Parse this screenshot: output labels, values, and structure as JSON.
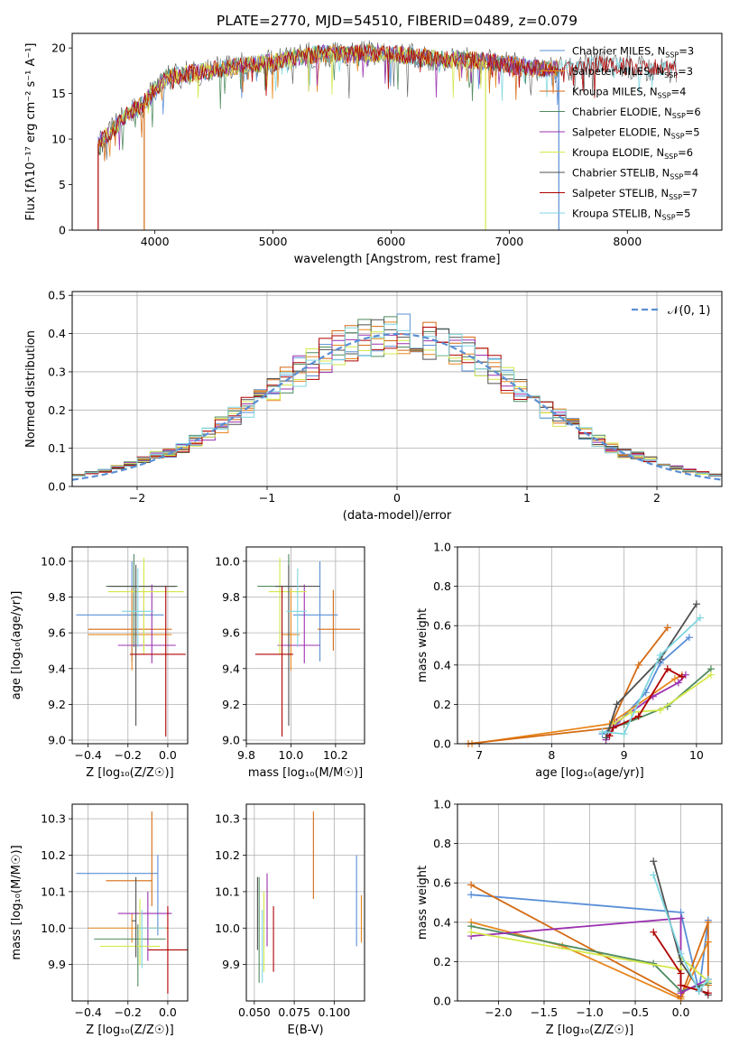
{
  "title": "PLATE=2770, MJD=54510, FIBERID=0489, z=0.079",
  "series_colors": [
    "#5a8fd6",
    "#e8871e",
    "#d46a12",
    "#4f8a5e",
    "#9b30b0",
    "#d4e84a",
    "#505050",
    "#b00000",
    "#7fd6e0"
  ],
  "chart_data": [
    {
      "id": "spectrum",
      "type": "line",
      "title": "PLATE=2770, MJD=54510, FIBERID=0489, z=0.079",
      "xlabel": "wavelength [Angstrom, rest frame]",
      "ylabel": "Flux [fλ10⁻¹⁷ erg cm⁻² s⁻¹ A⁻¹]",
      "xlim": [
        3300,
        8800
      ],
      "ylim": [
        0,
        21.6
      ],
      "xticks": [
        "4000",
        "5000",
        "6000",
        "7000",
        "8000"
      ],
      "yticks": [
        "0",
        "5",
        "10",
        "15",
        "20"
      ],
      "legend_position": "right",
      "legend": [
        {
          "label": "Chabrier MILES, N",
          "sub": "SSP",
          "tail": "=3"
        },
        {
          "label": "Salpeter MILES, N",
          "sub": "SSP",
          "tail": "=3"
        },
        {
          "label": "Kroupa MILES, N",
          "sub": "SSP",
          "tail": "=4"
        },
        {
          "label": "Chabrier ELODIE, N",
          "sub": "SSP",
          "tail": "=6"
        },
        {
          "label": "Salpeter ELODIE, N",
          "sub": "SSP",
          "tail": "=5"
        },
        {
          "label": "Kroupa ELODIE, N",
          "sub": "SSP",
          "tail": "=6"
        },
        {
          "label": "Chabrier STELIB, N",
          "sub": "SSP",
          "tail": "=4"
        },
        {
          "label": "Salpeter STELIB, N",
          "sub": "SSP",
          "tail": "=7"
        },
        {
          "label": "Kroupa STELIB, N",
          "sub": "SSP",
          "tail": "=5"
        }
      ],
      "envelope": {
        "x": [
          3520,
          3600,
          3700,
          3800,
          3900,
          4000,
          4100,
          4200,
          4400,
          4600,
          4800,
          5000,
          5200,
          5400,
          5600,
          5800,
          6000,
          6200,
          6400,
          6600,
          6800,
          7000,
          7200,
          7400,
          7600,
          7800,
          8000,
          8200,
          8400
        ],
        "y": [
          9.5,
          10.5,
          11.8,
          13.2,
          13.8,
          15.5,
          16.8,
          17.0,
          17.4,
          17.8,
          18.2,
          18.4,
          19.0,
          19.4,
          19.2,
          19.5,
          19.3,
          19.1,
          18.8,
          18.8,
          18.5,
          18.2,
          17.8,
          17.7,
          18.0,
          18.3,
          18.0,
          17.8,
          17.6
        ]
      }
    },
    {
      "id": "residuals",
      "type": "bar",
      "xlabel": "(data-model)/error",
      "ylabel": "Normed distribution",
      "xlim": [
        -2.5,
        2.5
      ],
      "ylim": [
        0,
        0.51
      ],
      "xticks": [
        "−2",
        "−1",
        "0",
        "1",
        "2"
      ],
      "yticks": [
        "0.0",
        "0.1",
        "0.2",
        "0.3",
        "0.4",
        "0.5"
      ],
      "bin_width": 0.1,
      "legend_label": "𝒩(0, 1)",
      "legend_position": "top-right"
    },
    {
      "id": "age_vs_Z",
      "type": "scatter",
      "xlabel": "Z [log₁₀(Z/Z☉)]",
      "ylabel": "age  [log₁₀(age/yr)]",
      "xlim": [
        -0.48,
        0.1
      ],
      "ylim": [
        8.98,
        10.08
      ],
      "xticks": [
        "−0.4",
        "−0.2",
        "0.0"
      ],
      "yticks": [
        "9.0",
        "9.2",
        "9.4",
        "9.6",
        "9.8",
        "10.0"
      ],
      "points": [
        {
          "x": -0.18,
          "y": 9.7,
          "xl": 0.28,
          "xr": 0.16,
          "yl": 0.26,
          "yh": 0.3,
          "c": 0
        },
        {
          "x": -0.18,
          "y": 9.59,
          "xl": 0.22,
          "xr": 0.2,
          "yl": 0.2,
          "yh": 0.26,
          "c": 1
        },
        {
          "x": -0.12,
          "y": 9.62,
          "xl": 0.28,
          "xr": 0.14,
          "yl": 0.12,
          "yh": 0.22,
          "c": 2
        },
        {
          "x": -0.17,
          "y": 9.86,
          "xl": 0.14,
          "xr": 0.22,
          "yl": 0.34,
          "yh": 0.18,
          "c": 3
        },
        {
          "x": -0.08,
          "y": 9.53,
          "xl": 0.17,
          "xr": 0.12,
          "yl": 0.1,
          "yh": 0.34,
          "c": 4
        },
        {
          "x": -0.12,
          "y": 9.83,
          "xl": 0.18,
          "xr": 0.2,
          "yl": 0.35,
          "yh": 0.19,
          "c": 5
        },
        {
          "x": -0.16,
          "y": 9.86,
          "xl": 0.14,
          "xr": 0.2,
          "yl": 0.78,
          "yh": 0.12,
          "c": 6
        },
        {
          "x": -0.01,
          "y": 9.48,
          "xl": 0.18,
          "xr": 0.1,
          "yl": 0.46,
          "yh": 0.38,
          "c": 7
        },
        {
          "x": -0.15,
          "y": 9.72,
          "xl": 0.08,
          "xr": 0.08,
          "yl": 0.2,
          "yh": 0.24,
          "c": 8
        }
      ]
    },
    {
      "id": "age_vs_mass",
      "type": "scatter",
      "xlabel": "mass [log₁₀(M/M☉)]",
      "ylabel": "",
      "xlim": [
        9.8,
        10.33
      ],
      "ylim": [
        8.98,
        10.08
      ],
      "xticks": [
        "9.8",
        "10.0",
        "10.2"
      ],
      "yticks": [
        "9.0",
        "9.2",
        "9.4",
        "9.6",
        "9.8",
        "10.0"
      ],
      "points": [
        {
          "x": 10.13,
          "y": 9.7,
          "xl": 0.12,
          "xr": 0.08,
          "yl": 0.26,
          "yh": 0.3,
          "c": 0
        },
        {
          "x": 10.0,
          "y": 9.59,
          "xl": 0.04,
          "xr": 0.04,
          "yl": 0.2,
          "yh": 0.26,
          "c": 1
        },
        {
          "x": 10.19,
          "y": 9.62,
          "xl": 0.07,
          "xr": 0.12,
          "yl": 0.12,
          "yh": 0.22,
          "c": 2
        },
        {
          "x": 9.99,
          "y": 9.86,
          "xl": 0.14,
          "xr": 0.04,
          "yl": 0.34,
          "yh": 0.18,
          "c": 3
        },
        {
          "x": 10.06,
          "y": 9.53,
          "xl": 0.12,
          "xr": 0.07,
          "yl": 0.1,
          "yh": 0.34,
          "c": 4
        },
        {
          "x": 9.95,
          "y": 9.83,
          "xl": 0.05,
          "xr": 0.12,
          "yl": 0.35,
          "yh": 0.19,
          "c": 5
        },
        {
          "x": 9.99,
          "y": 9.86,
          "xl": 0.06,
          "xr": 0.14,
          "yl": 0.78,
          "yh": 0.12,
          "c": 6
        },
        {
          "x": 9.96,
          "y": 9.48,
          "xl": 0.12,
          "xr": 0.05,
          "yl": 0.46,
          "yh": 0.38,
          "c": 7
        },
        {
          "x": 10.03,
          "y": 9.72,
          "xl": 0.05,
          "xr": 0.04,
          "yl": 0.2,
          "yh": 0.24,
          "c": 8
        }
      ]
    },
    {
      "id": "mass_weight_vs_age",
      "type": "line",
      "xlabel": "age  [log₁₀(age/yr)]",
      "ylabel": "mass weight",
      "xlim": [
        6.7,
        10.35
      ],
      "ylim": [
        0,
        1.0
      ],
      "xticks": [
        "7",
        "8",
        "9",
        "10"
      ],
      "yticks": [
        "0.0",
        "0.2",
        "0.4",
        "0.6",
        "0.8",
        "1.0"
      ],
      "series": [
        {
          "c": 0,
          "x": [
            8.7,
            8.9,
            9.3,
            9.5,
            9.9
          ],
          "y": [
            0.05,
            0.1,
            0.26,
            0.41,
            0.54
          ]
        },
        {
          "c": 1,
          "x": [
            6.9,
            8.8,
            9.7,
            9.8
          ],
          "y": [
            0.0,
            0.1,
            0.33,
            0.35
          ]
        },
        {
          "c": 2,
          "x": [
            6.85,
            8.8,
            9.2,
            9.6
          ],
          "y": [
            0.0,
            0.08,
            0.4,
            0.59
          ]
        },
        {
          "c": 3,
          "x": [
            8.8,
            9.0,
            9.6,
            10.2
          ],
          "y": [
            0.08,
            0.1,
            0.19,
            0.38
          ]
        },
        {
          "c": 4,
          "x": [
            8.75,
            8.9,
            9.4,
            9.75,
            9.85
          ],
          "y": [
            0.02,
            0.11,
            0.24,
            0.31,
            0.35
          ]
        },
        {
          "c": 5,
          "x": [
            8.85,
            9.1,
            9.5,
            10.2
          ],
          "y": [
            0.1,
            0.16,
            0.17,
            0.35
          ]
        },
        {
          "c": 6,
          "x": [
            8.75,
            8.9,
            9.5,
            10.0
          ],
          "y": [
            0.03,
            0.2,
            0.43,
            0.71
          ]
        },
        {
          "c": 7,
          "x": [
            8.8,
            8.85,
            9.2,
            9.6,
            9.8
          ],
          "y": [
            0.04,
            0.08,
            0.14,
            0.38,
            0.34
          ]
        },
        {
          "c": 8,
          "x": [
            8.7,
            9.0,
            9.5,
            10.05
          ],
          "y": [
            0.06,
            0.05,
            0.45,
            0.64
          ]
        }
      ]
    },
    {
      "id": "mass_vs_Z",
      "type": "scatter",
      "xlabel": "Z [log₁₀(Z/Z☉)]",
      "ylabel": "mass [log₁₀(M/M☉)]",
      "xlim": [
        -0.48,
        0.1
      ],
      "ylim": [
        9.8,
        10.34
      ],
      "xticks": [
        "−0.4",
        "−0.2",
        "0.0"
      ],
      "yticks": [
        "9.9",
        "10.0",
        "10.1",
        "10.2",
        "10.3"
      ],
      "points": [
        {
          "x": -0.05,
          "y": 10.15,
          "xl": 0.41,
          "xr": 0.0,
          "yl": 0.17,
          "yh": 0.05,
          "c": 0
        },
        {
          "x": -0.18,
          "y": 10.0,
          "xl": 0.22,
          "xr": 0.18,
          "yl": 0.04,
          "yh": 0.04,
          "c": 1
        },
        {
          "x": -0.08,
          "y": 10.13,
          "xl": 0.23,
          "xr": 0.0,
          "yl": 0.07,
          "yh": 0.19,
          "c": 2
        },
        {
          "x": -0.15,
          "y": 9.97,
          "xl": 0.22,
          "xr": 0.14,
          "yl": 0.13,
          "yh": 0.04,
          "c": 3
        },
        {
          "x": -0.1,
          "y": 10.04,
          "xl": 0.15,
          "xr": 0.12,
          "yl": 0.13,
          "yh": 0.06,
          "c": 4
        },
        {
          "x": -0.14,
          "y": 9.95,
          "xl": 0.2,
          "xr": 0.1,
          "yl": 0.05,
          "yh": 0.13,
          "c": 5
        },
        {
          "x": -0.16,
          "y": 10.02,
          "xl": 0.02,
          "xr": 0.0,
          "yl": 0.1,
          "yh": 0.12,
          "c": 6
        },
        {
          "x": 0.0,
          "y": 9.94,
          "xl": 0.1,
          "xr": 0.1,
          "yl": 0.12,
          "yh": 0.12,
          "c": 7
        },
        {
          "x": -0.13,
          "y": 10.0,
          "xl": 0.02,
          "xr": 0.12,
          "yl": 0.11,
          "yh": 0.05,
          "c": 8
        }
      ]
    },
    {
      "id": "mass_vs_ebv",
      "type": "scatter",
      "xlabel": "E(B-V)",
      "ylabel": "",
      "xlim": [
        0.045,
        0.119
      ],
      "ylim": [
        9.8,
        10.34
      ],
      "xticks": [
        "0.050",
        "0.075",
        "0.100"
      ],
      "yticks": [
        "9.9",
        "10.0",
        "10.1",
        "10.2",
        "10.3"
      ],
      "points": [
        {
          "x": 0.114,
          "y": 10.07,
          "yl": 0.12,
          "yh": 0.13,
          "c": 0
        },
        {
          "x": 0.117,
          "y": 10.02,
          "yl": 0.06,
          "yh": 0.07,
          "c": 1
        },
        {
          "x": 0.087,
          "y": 10.2,
          "yl": 0.12,
          "yh": 0.12,
          "c": 2
        },
        {
          "x": 0.053,
          "y": 10.0,
          "yl": 0.15,
          "yh": 0.14,
          "c": 3
        },
        {
          "x": 0.058,
          "y": 10.05,
          "yl": 0.1,
          "yh": 0.1,
          "c": 4
        },
        {
          "x": 0.056,
          "y": 9.98,
          "yl": 0.1,
          "yh": 0.12,
          "c": 5
        },
        {
          "x": 0.052,
          "y": 10.04,
          "yl": 0.1,
          "yh": 0.1,
          "c": 6
        },
        {
          "x": 0.062,
          "y": 9.98,
          "yl": 0.1,
          "yh": 0.08,
          "c": 7
        },
        {
          "x": 0.055,
          "y": 9.95,
          "yl": 0.1,
          "yh": 0.1,
          "c": 8
        }
      ]
    },
    {
      "id": "mass_weight_vs_Z",
      "type": "line",
      "xlabel": "Z [log₁₀(Z/Z☉)]",
      "ylabel": "mass weight",
      "xlim": [
        -2.45,
        0.45
      ],
      "ylim": [
        0,
        1.0
      ],
      "xticks": [
        "−2.0",
        "−1.5",
        "−1.0",
        "−0.5",
        "0.0"
      ],
      "yticks": [
        "0.0",
        "0.2",
        "0.4",
        "0.6",
        "0.8",
        "1.0"
      ],
      "series": [
        {
          "c": 0,
          "x": [
            -2.3,
            0.0,
            0.2,
            0.3
          ],
          "y": [
            0.54,
            0.45,
            0.05,
            0.41
          ]
        },
        {
          "c": 1,
          "x": [
            -2.3,
            -1.3,
            0.0,
            0.3
          ],
          "y": [
            0.4,
            0.28,
            0.01,
            0.3
          ]
        },
        {
          "c": 2,
          "x": [
            -2.3,
            0.0,
            0.3,
            0.3
          ],
          "y": [
            0.59,
            0.02,
            0.4,
            0.08
          ]
        },
        {
          "c": 3,
          "x": [
            -2.3,
            -0.3,
            0.0,
            0.3
          ],
          "y": [
            0.38,
            0.19,
            0.05,
            0.09
          ]
        },
        {
          "c": 4,
          "x": [
            -2.3,
            0.0,
            0.0,
            0.3
          ],
          "y": [
            0.33,
            0.42,
            0.04,
            0.11
          ]
        },
        {
          "c": 5,
          "x": [
            -2.3,
            0.0,
            0.0,
            0.3
          ],
          "y": [
            0.35,
            0.16,
            0.22,
            0.1
          ]
        },
        {
          "c": 6,
          "x": [
            -0.3,
            0.0,
            0.2,
            0.3
          ],
          "y": [
            0.71,
            0.2,
            0.06,
            0.03
          ]
        },
        {
          "c": 7,
          "x": [
            -0.3,
            0.0,
            0.0,
            0.3
          ],
          "y": [
            0.35,
            0.14,
            0.08,
            0.04
          ]
        },
        {
          "c": 8,
          "x": [
            -0.3,
            0.0,
            0.2,
            0.3
          ],
          "y": [
            0.64,
            0.24,
            0.05,
            0.11
          ]
        }
      ]
    }
  ]
}
